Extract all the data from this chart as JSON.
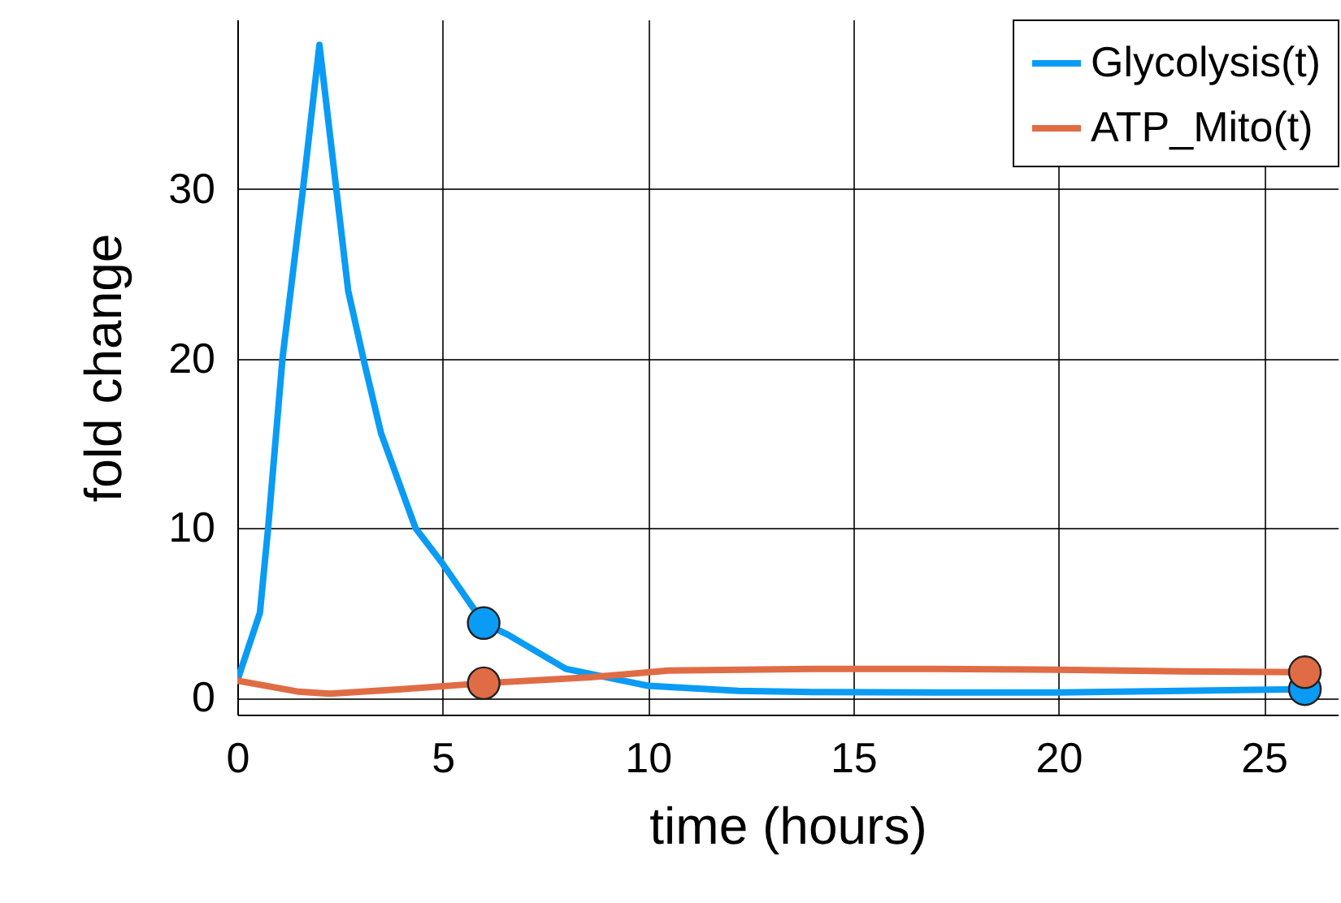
{
  "chart_data": {
    "type": "line",
    "xlabel": "time (hours)",
    "ylabel": "fold change",
    "xlim": [
      0,
      26.8
    ],
    "ylim": [
      -1,
      40
    ],
    "xticks": [
      0,
      5,
      10,
      15,
      20,
      25
    ],
    "yticks": [
      0,
      10,
      20,
      30
    ],
    "grid": true,
    "legend": "top right",
    "line_style": "solid",
    "series": [
      {
        "name": "Glycolysis(t)",
        "color": "#0a9bf5",
        "x": [
          0,
          0.55,
          0.75,
          1.1,
          1.6,
          2.0,
          2.7,
          3.07,
          3.5,
          4.34,
          5.0,
          6.0,
          6.6,
          8.0,
          10,
          12.2,
          14,
          17,
          20,
          23,
          26
        ],
        "values": [
          1,
          5,
          10,
          20,
          30,
          38.5,
          24,
          20,
          15.6,
          10,
          7.9,
          4.4,
          3.7,
          1.7,
          0.7,
          0.4,
          0.33,
          0.3,
          0.3,
          0.4,
          0.5
        ]
      },
      {
        "name": "ATP_Mito(t)",
        "color": "#e06c45",
        "x": [
          0,
          1.5,
          2.25,
          4,
          6,
          8.6,
          10.5,
          14,
          17,
          20,
          23,
          26
        ],
        "values": [
          1,
          0.35,
          0.23,
          0.5,
          0.85,
          1.2,
          1.6,
          1.7,
          1.7,
          1.65,
          1.55,
          1.5
        ]
      },
      {
        "type": "scatter",
        "marker": "circle",
        "color": "#0a9bf5",
        "x": [
          6,
          26
        ],
        "values": [
          4.4,
          0.5
        ]
      },
      {
        "type": "scatter",
        "marker": "circle",
        "color": "#e06c45",
        "x": [
          6,
          26
        ],
        "values": [
          0.85,
          1.5
        ]
      }
    ]
  }
}
